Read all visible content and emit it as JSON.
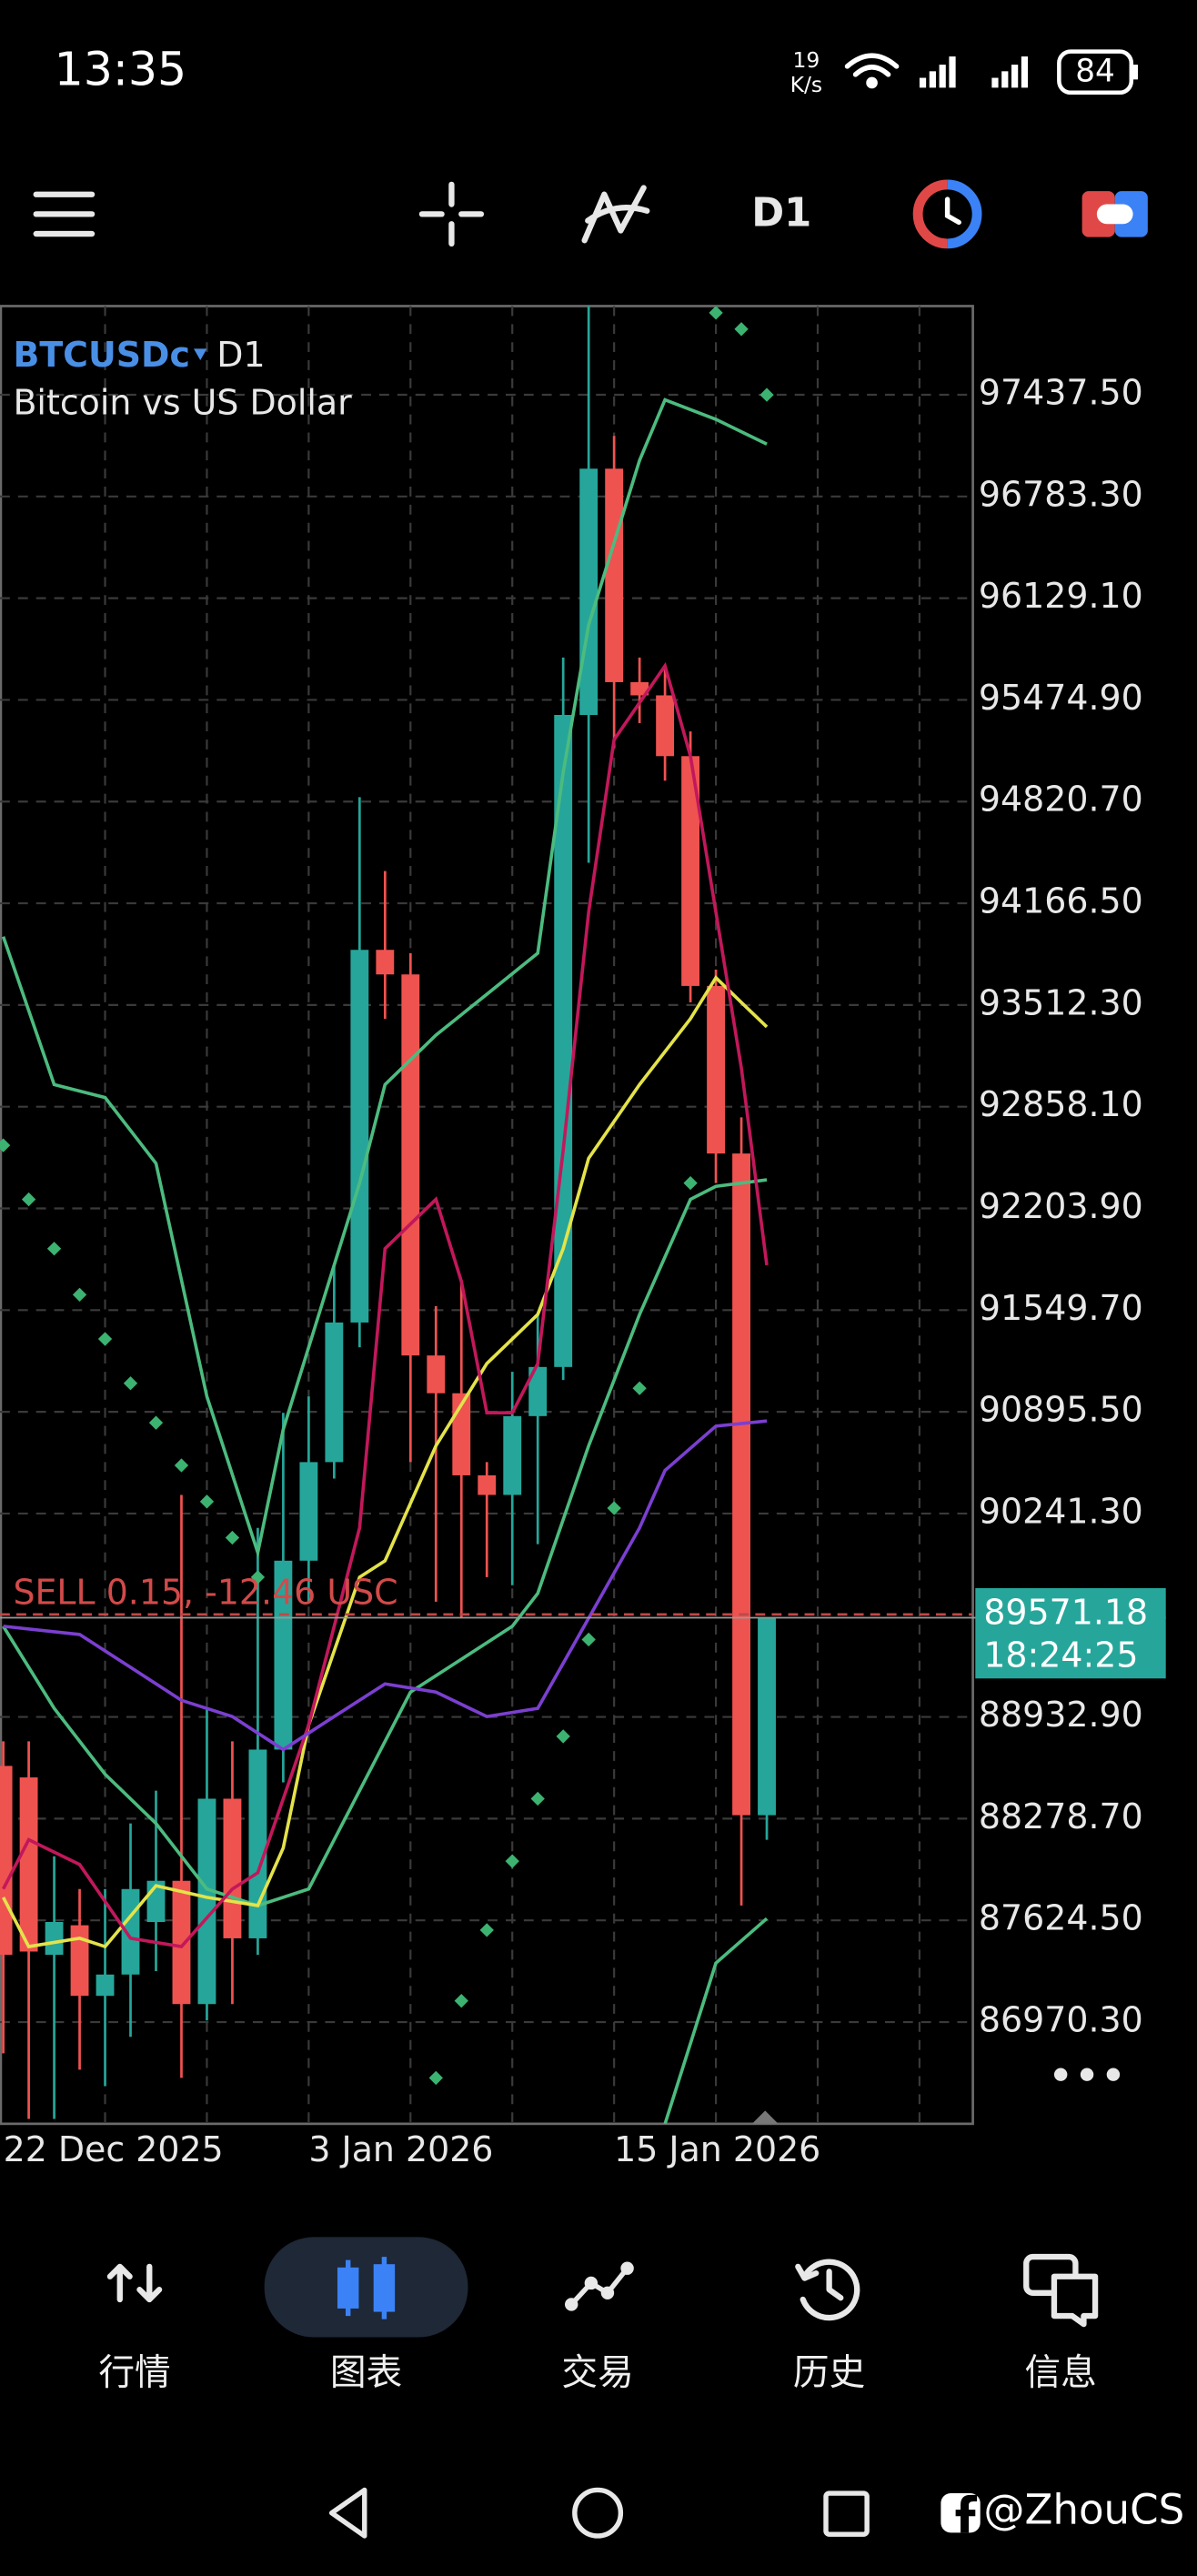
{
  "status_bar": {
    "time": "13:35",
    "net_speed": "19",
    "net_unit": "K/s",
    "battery": "84"
  },
  "toolbar": {
    "timeframe": "D1"
  },
  "chart_data": {
    "type": "candlestick",
    "symbol": "BTCUSDc",
    "timeframe": "D1",
    "description": "Bitcoin vs US Dollar",
    "trade_label": "SELL 0.15, -12.46 USC",
    "categories": [
      "22 Dec 2025",
      null,
      null,
      null,
      null,
      null,
      null,
      null,
      null,
      null,
      null,
      null,
      "3 Jan 2026",
      null,
      null,
      null,
      null,
      null,
      null,
      null,
      null,
      null,
      null,
      null,
      "15 Jan 2026",
      null,
      null,
      null,
      null,
      null,
      null
    ],
    "open": [
      88618,
      88544,
      87403,
      87593,
      87139,
      87276,
      87614,
      87879,
      87086,
      88407,
      87509,
      88723,
      89938,
      90572,
      91470,
      93867,
      93709,
      91258,
      91015,
      90487,
      90361,
      90868,
      91184,
      95378,
      96962,
      95589,
      95504,
      95113,
      93635,
      92557,
      88301
    ],
    "high": [
      88776,
      88776,
      88037,
      87826,
      87826,
      88248,
      88459,
      90361,
      88988,
      88776,
      90149,
      90889,
      90994,
      91839,
      94849,
      94374,
      93846,
      91575,
      91734,
      90572,
      91153,
      91522,
      95747,
      98008,
      97173,
      95747,
      95694,
      95272,
      93740,
      92790,
      89568
    ],
    "low": [
      86769,
      86347,
      86347,
      86664,
      86558,
      86875,
      87298,
      86611,
      86981,
      87086,
      87403,
      88512,
      89674,
      90466,
      91311,
      93424,
      90572,
      89674,
      89568,
      89832,
      89780,
      90044,
      91100,
      94427,
      95166,
      95325,
      94955,
      93529,
      92367,
      87720,
      88143
    ],
    "close": [
      87403,
      87424,
      87614,
      87139,
      87276,
      87826,
      87879,
      87086,
      88407,
      87509,
      88723,
      89938,
      90572,
      91470,
      93867,
      93709,
      91258,
      91015,
      90487,
      90361,
      90868,
      91184,
      95378,
      96962,
      95589,
      95504,
      95113,
      93635,
      92557,
      88301,
      89571.18
    ],
    "up_color": "#26a69a",
    "down_color": "#ef5350",
    "ylim": [
      86316,
      98008
    ],
    "yticks": [
      {
        "value": 97437.5,
        "label": "97437.50"
      },
      {
        "value": 96783.3,
        "label": "96783.30"
      },
      {
        "value": 96129.1,
        "label": "96129.10"
      },
      {
        "value": 95474.9,
        "label": "95474.90"
      },
      {
        "value": 94820.7,
        "label": "94820.70"
      },
      {
        "value": 94166.5,
        "label": "94166.50"
      },
      {
        "value": 93512.3,
        "label": "93512.30"
      },
      {
        "value": 92858.1,
        "label": "92858.10"
      },
      {
        "value": 92203.9,
        "label": "92203.90"
      },
      {
        "value": 91549.7,
        "label": "91549.70"
      },
      {
        "value": 90895.5,
        "label": "90895.50"
      },
      {
        "value": 90241.3,
        "label": "90241.30"
      },
      {
        "value": 88932.9,
        "label": "88932.90"
      },
      {
        "value": 88278.7,
        "label": "88278.70"
      },
      {
        "value": 87624.5,
        "label": "87624.50"
      },
      {
        "value": 86970.3,
        "label": "86970.30"
      }
    ],
    "grid": true,
    "current_price": 89571.18,
    "current_time": "18:24:25",
    "overlays": [
      {
        "type": "line",
        "color": "#4cbb7f",
        "x": [
          0,
          2,
          4,
          6,
          8,
          10,
          11,
          14,
          15,
          17,
          19,
          21,
          22,
          23,
          25,
          26,
          28,
          30
        ],
        "values": [
          93952,
          93001,
          92917,
          92494,
          90994,
          89991,
          90783,
          92367,
          93001,
          93318,
          93582,
          93846,
          95008,
          95958,
          97015,
          97405,
          97279,
          97120
        ]
      },
      {
        "type": "line",
        "color": "#4cbb7f",
        "x": [
          0,
          2,
          4,
          6,
          8,
          10,
          12,
          14,
          16,
          18,
          20,
          21,
          23,
          25,
          27,
          28,
          30
        ],
        "values": [
          89516,
          88988,
          88565,
          88248,
          87826,
          87720,
          87826,
          88459,
          89093,
          89304,
          89516,
          89727,
          90677,
          91522,
          92262,
          92346,
          92388
        ]
      },
      {
        "type": "line",
        "color": "#4cbb7f",
        "x": [
          26,
          28,
          30
        ],
        "values": [
          86315,
          87350,
          87636
        ]
      },
      {
        "type": "line",
        "color": "#e3e34a",
        "x": [
          0,
          1,
          3,
          4,
          6,
          8,
          10,
          11,
          12,
          14,
          15,
          17,
          19,
          21,
          22,
          23,
          25,
          27,
          28,
          29,
          30
        ],
        "values": [
          87773,
          87456,
          87509,
          87456,
          87847,
          87773,
          87720,
          88090,
          88882,
          89832,
          89938,
          90677,
          91206,
          91522,
          91945,
          92526,
          93001,
          93424,
          93688,
          93529,
          93371
        ]
      },
      {
        "type": "line",
        "color": "#c2185b",
        "x": [
          0,
          1,
          3,
          5,
          7,
          9,
          10,
          12,
          14,
          15,
          17,
          18,
          19,
          20,
          21,
          22,
          23,
          24,
          26,
          27,
          29,
          30
        ],
        "values": [
          87826,
          88143,
          87984,
          87509,
          87456,
          87826,
          87931,
          88882,
          90149,
          91945,
          92262,
          91734,
          90889,
          90889,
          91206,
          92579,
          94110,
          95219,
          95694,
          95113,
          93107,
          91839
        ]
      },
      {
        "type": "line",
        "color": "#7b3fd0",
        "x": [
          0,
          3,
          5,
          7,
          9,
          11,
          13,
          15,
          17,
          19,
          21,
          23,
          25,
          26,
          28,
          30
        ],
        "values": [
          89516,
          89463,
          89252,
          89040,
          88935,
          88723,
          88935,
          89146,
          89093,
          88935,
          88988,
          89568,
          90149,
          90519,
          90804,
          90836
        ]
      },
      {
        "type": "scatter",
        "color": "#3cb371",
        "x": [
          0,
          1,
          2,
          3,
          4,
          5,
          6,
          7,
          8,
          9,
          10,
          17,
          18,
          19,
          20,
          21,
          22,
          23,
          24,
          25,
          27,
          28,
          29,
          30
        ],
        "values": [
          92610,
          92262,
          91945,
          91649,
          91364,
          91079,
          90825,
          90551,
          90318,
          90086,
          89832,
          86611,
          87107,
          87562,
          88005,
          88407,
          88808,
          89431,
          90276,
          91047,
          92367,
          97965,
          97860,
          97437
        ]
      }
    ]
  },
  "nav": {
    "items": [
      "行情",
      "图表",
      "交易",
      "历史",
      "信息"
    ],
    "active": 1
  },
  "watermark": "@ZhouCS"
}
